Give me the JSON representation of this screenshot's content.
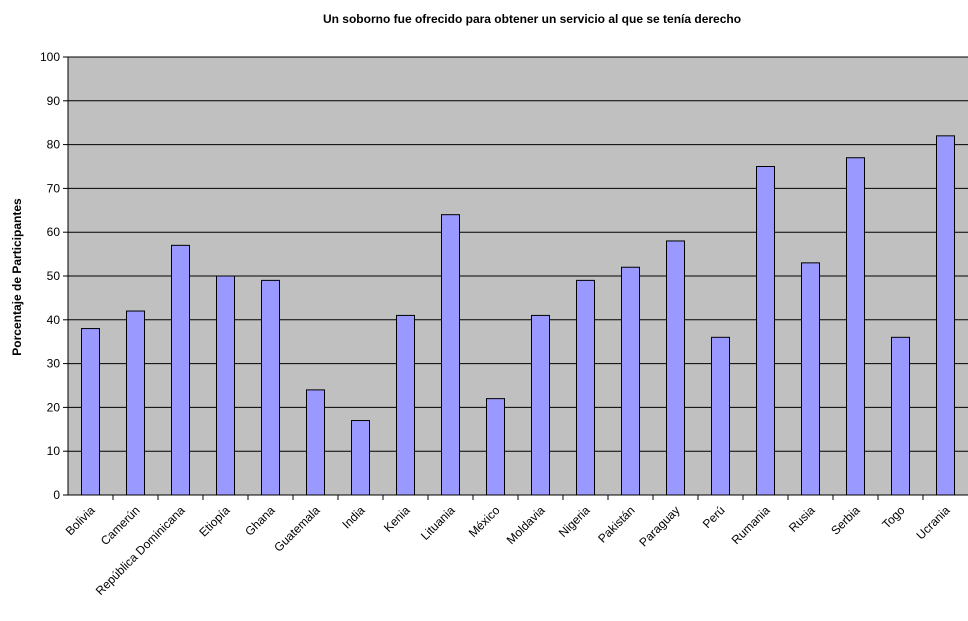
{
  "chart_data": {
    "type": "bar",
    "title": "Un  soborno fue ofrecido para obtener un servicio al que se tenía derecho",
    "xlabel": "",
    "ylabel": "Porcentaje de Participantes",
    "ylim": [
      0,
      100
    ],
    "yticks": [
      0,
      10,
      20,
      30,
      40,
      50,
      60,
      70,
      80,
      90,
      100
    ],
    "grid": true,
    "legend": "none",
    "bar_color": "#9999ff",
    "plot_background": "#c0c0c0",
    "categories": [
      "Bolivia",
      "Camerún",
      "República Dominicana",
      "Etiopía",
      "Ghana",
      "Guatemala",
      "India",
      "Kenia",
      "Lituania",
      "México",
      "Moldavia",
      "Nigeria",
      "Pakistán",
      "Paraguay",
      "Perú",
      "Rumania",
      "Rusia",
      "Serbia",
      "Togo",
      "Ucrania"
    ],
    "values": [
      38,
      42,
      57,
      50,
      49,
      24,
      17,
      41,
      64,
      22,
      41,
      49,
      52,
      58,
      36,
      75,
      53,
      77,
      36,
      82
    ]
  }
}
